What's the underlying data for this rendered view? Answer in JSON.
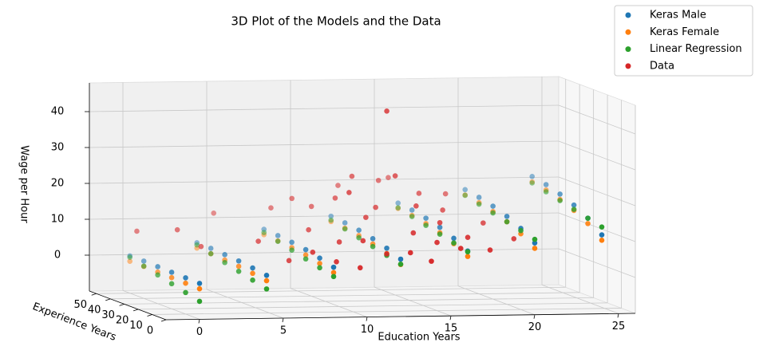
{
  "chart_data": {
    "type": "scatter3d",
    "title": "3D Plot of the Models and the Data",
    "xlabel": "Education Years",
    "ylabel": "Experience Years",
    "zlabel": "Wage per Hour",
    "xlim": [
      -2,
      26
    ],
    "ylim": [
      0,
      55
    ],
    "zlim": [
      -10,
      48
    ],
    "xticks": [
      0,
      5,
      10,
      15,
      20,
      25
    ],
    "yticks": [
      0,
      10,
      20,
      30,
      40,
      50
    ],
    "zticks": [
      0,
      10,
      20,
      30,
      40
    ],
    "grid": true,
    "legend": "upper right",
    "series": [
      {
        "name": "Keras Male",
        "color": "#1f77b4",
        "x": [
          0,
          0,
          0,
          0,
          0,
          0,
          4,
          4,
          4,
          4,
          4,
          4,
          8,
          8,
          8,
          8,
          8,
          8,
          12,
          12,
          12,
          12,
          12,
          12,
          16,
          16,
          16,
          16,
          16,
          16,
          20,
          20,
          20,
          20,
          20,
          20,
          24,
          24,
          24,
          24,
          24,
          24
        ],
        "y": [
          0,
          10,
          20,
          30,
          40,
          50,
          0,
          10,
          20,
          30,
          40,
          50,
          0,
          10,
          20,
          30,
          40,
          50,
          0,
          10,
          20,
          30,
          40,
          50,
          0,
          10,
          20,
          30,
          40,
          50,
          0,
          10,
          20,
          30,
          40,
          50,
          0,
          10,
          20,
          30,
          40,
          50
        ],
        "z": [
          0,
          0.1,
          0.2,
          0.3,
          0.4,
          0.4,
          2,
          2.6,
          3.1,
          3.4,
          3.7,
          3.8,
          4,
          5.1,
          6,
          6.6,
          7,
          7.3,
          6,
          7.6,
          8.8,
          9.7,
          10.3,
          10.7,
          8,
          10.1,
          11.7,
          12.8,
          13.6,
          14.1,
          10,
          12.6,
          14.5,
          15.9,
          16.9,
          17.6,
          12,
          15.2,
          17.4,
          19,
          20.2,
          21
        ]
      },
      {
        "name": "Keras Female",
        "color": "#ff7f0e",
        "x": [
          0,
          0,
          0,
          0,
          0,
          0,
          4,
          4,
          4,
          4,
          4,
          4,
          8,
          8,
          8,
          8,
          8,
          8,
          12,
          12,
          12,
          12,
          12,
          12,
          16,
          16,
          16,
          16,
          16,
          16,
          20,
          20,
          20,
          20,
          20,
          20,
          24,
          24,
          24,
          24,
          24,
          24
        ],
        "y": [
          0,
          10,
          20,
          30,
          40,
          50,
          0,
          10,
          20,
          30,
          40,
          50,
          0,
          10,
          20,
          30,
          40,
          50,
          0,
          10,
          20,
          30,
          40,
          50,
          0,
          10,
          20,
          30,
          40,
          50,
          0,
          10,
          20,
          30,
          40,
          50,
          0,
          10,
          20,
          30,
          40,
          50
        ],
        "z": [
          -1.5,
          -1.4,
          -1.3,
          -1.2,
          -1.1,
          -1.1,
          0.5,
          1.1,
          1.6,
          1.9,
          2.2,
          2.3,
          2.5,
          3.6,
          4.5,
          5.1,
          5.5,
          5.8,
          4.5,
          6.1,
          7.3,
          8.2,
          8.8,
          9.2,
          6.5,
          8.6,
          10.2,
          11.3,
          12.1,
          12.6,
          8.5,
          11.1,
          13,
          14.4,
          15.4,
          16.1,
          10.5,
          13.7,
          15.9,
          17.5,
          18.7,
          19.5
        ]
      },
      {
        "name": "Linear Regression",
        "color": "#2ca02c",
        "x": [
          0,
          0,
          0,
          0,
          0,
          0,
          4,
          4,
          4,
          4,
          4,
          4,
          8,
          8,
          8,
          8,
          8,
          8,
          12,
          12,
          12,
          12,
          12,
          12,
          16,
          16,
          16,
          16,
          16,
          16,
          20,
          20,
          20,
          20,
          20,
          20,
          24,
          24,
          24,
          24,
          24,
          24
        ],
        "y": [
          0,
          10,
          20,
          30,
          40,
          50,
          0,
          10,
          20,
          30,
          40,
          50,
          0,
          10,
          20,
          30,
          40,
          50,
          0,
          10,
          20,
          30,
          40,
          50,
          0,
          10,
          20,
          30,
          40,
          50,
          0,
          10,
          20,
          30,
          40,
          50,
          0,
          10,
          20,
          30,
          40,
          50
        ],
        "z": [
          -5,
          -4,
          -3,
          -2,
          -1,
          0,
          -1.8,
          -0.8,
          0.2,
          1.2,
          2.2,
          3.2,
          1.4,
          2.4,
          3.4,
          4.4,
          5.4,
          6.4,
          4.6,
          5.6,
          6.6,
          7.6,
          8.6,
          9.6,
          7.8,
          8.8,
          9.8,
          10.8,
          11.8,
          12.8,
          11,
          12,
          13,
          14,
          15,
          16,
          14.2,
          15.2,
          16.2,
          17.2,
          18.2,
          19.2
        ]
      },
      {
        "name": "Data",
        "color": "#d62728",
        "x": [
          0,
          2,
          3,
          5,
          6,
          7,
          8,
          8,
          9,
          9,
          10,
          10,
          10,
          11,
          11,
          12,
          12,
          12,
          13,
          13,
          13,
          14,
          14,
          14,
          15,
          15,
          16,
          16,
          16,
          17,
          17,
          18,
          18,
          19,
          20,
          12,
          14,
          11,
          15,
          9
        ],
        "y": [
          45,
          40,
          35,
          50,
          30,
          20,
          45,
          15,
          30,
          10,
          40,
          20,
          5,
          35,
          15,
          25,
          10,
          45,
          22,
          30,
          5,
          40,
          15,
          2,
          25,
          10,
          35,
          5,
          20,
          30,
          12,
          40,
          8,
          25,
          15,
          35,
          28,
          25,
          45,
          42
        ],
        "z": [
          8,
          9,
          5,
          12,
          7,
          3,
          14,
          6,
          10,
          4,
          15,
          8,
          3,
          18,
          9,
          14,
          6,
          20,
          44,
          16,
          7,
          22,
          11,
          5,
          17,
          9,
          19,
          8,
          13,
          15,
          10,
          18,
          7,
          12,
          9,
          24,
          25,
          21,
          22,
          17
        ]
      }
    ]
  }
}
